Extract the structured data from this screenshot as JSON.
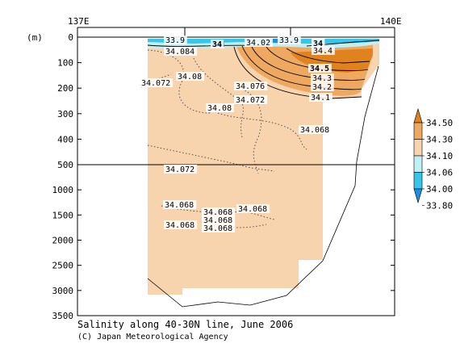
{
  "chart_data": {
    "type": "contour_section",
    "title": "Salinity along 40-30N line, June 2006",
    "credit": "(C) Japan Meteorological Agency",
    "top_axis": {
      "ticks": [
        {
          "lon": 137,
          "label": "137E"
        },
        {
          "lon": 138,
          "label": ""
        },
        {
          "lon": 139,
          "label": ""
        },
        {
          "lon": 140,
          "label": "140E"
        }
      ],
      "range": [
        137,
        140
      ]
    },
    "y_axis": {
      "unit_label": "(m)",
      "upper_panel_range": [
        0,
        500
      ],
      "lower_panel_range": [
        500,
        3500
      ],
      "upper_ticks": [
        0,
        100,
        200,
        300,
        400,
        500
      ],
      "lower_ticks": [
        1000,
        1500,
        2000,
        2500,
        3000,
        3500
      ],
      "tick_labels": [
        "0",
        "100",
        "200",
        "300",
        "400",
        "500",
        "1000",
        "1500",
        "2000",
        "2500",
        "3000",
        "3500"
      ],
      "inverted": true
    },
    "colorbar": {
      "levels": [
        "34.50",
        "34.30",
        "34.10",
        "34.06",
        "34.00",
        "33.80"
      ],
      "colors": [
        "#e0831f",
        "#efa85f",
        "#f7d3ae",
        "#bff0f4",
        "#37c6e9",
        "#1e8fe0"
      ]
    },
    "contour_labels": [
      {
        "text": "33.9"
      },
      {
        "text": "34"
      },
      {
        "text": "34.084"
      },
      {
        "text": "34.072"
      },
      {
        "text": "34.08"
      },
      {
        "text": "34.02"
      },
      {
        "text": "33.9"
      },
      {
        "text": "34"
      },
      {
        "text": "34.4"
      },
      {
        "text": "34.5"
      },
      {
        "text": "34.3"
      },
      {
        "text": "34.2"
      },
      {
        "text": "34.1"
      },
      {
        "text": "34.076"
      },
      {
        "text": "34.072"
      },
      {
        "text": "34.08"
      },
      {
        "text": "34.068"
      },
      {
        "text": "34.072"
      },
      {
        "text": "34.068"
      },
      {
        "text": "34.068"
      },
      {
        "text": "34.068"
      },
      {
        "text": "34.068"
      },
      {
        "text": "34.068"
      },
      {
        "text": "34.068"
      }
    ],
    "grid": false
  }
}
